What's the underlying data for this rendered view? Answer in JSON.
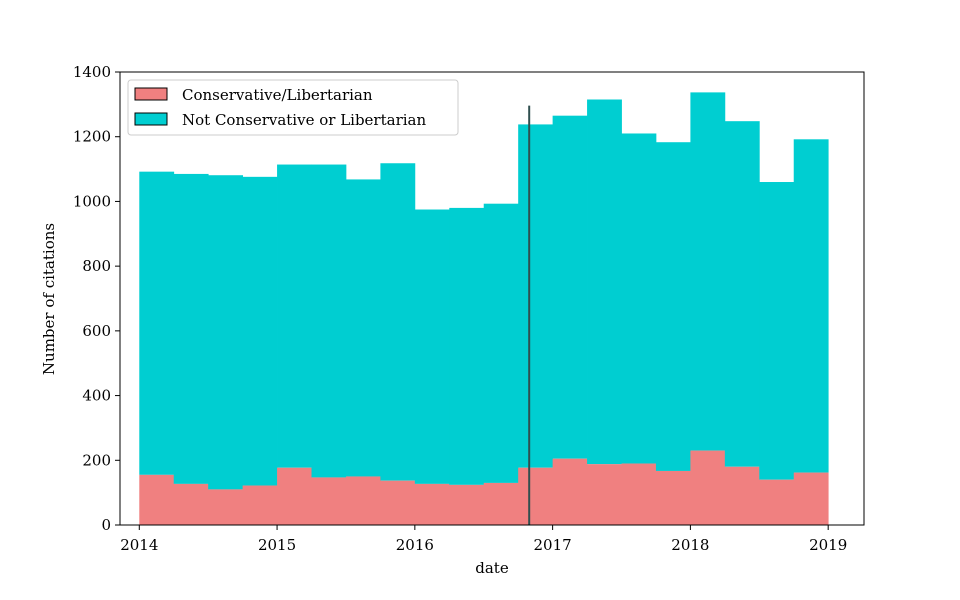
{
  "chart_data": {
    "type": "bar",
    "stacked": true,
    "title": "",
    "xlabel": "date",
    "ylabel": "Number of citations",
    "xlim": [
      2013.86,
      2019.26
    ],
    "ylim": [
      0,
      1400
    ],
    "grid": false,
    "legend_position": "top-left",
    "xticks": [
      2014,
      2015,
      2016,
      2017,
      2018,
      2019
    ],
    "yticks": [
      0,
      200,
      400,
      600,
      800,
      1000,
      1200,
      1400
    ],
    "bin_edges": [
      2014.0,
      2014.25,
      2014.5,
      2014.75,
      2015.0,
      2015.25,
      2015.5,
      2015.75,
      2016.0,
      2016.25,
      2016.5,
      2016.75,
      2017.0,
      2017.25,
      2017.5,
      2017.75,
      2018.0,
      2018.25,
      2018.5,
      2018.75,
      2019.0
    ],
    "series": [
      {
        "name": "Conservative/Libertarian",
        "color": "#f08080",
        "values": [
          155,
          127,
          110,
          122,
          177,
          147,
          150,
          137,
          127,
          124,
          130,
          177,
          205,
          188,
          190,
          167,
          230,
          180,
          140,
          162
        ]
      },
      {
        "name": "Not Conservative or Libertarian",
        "color": "#00ced1",
        "totals": [
          1092,
          1085,
          1081,
          1076,
          1114,
          1114,
          1068,
          1118,
          975,
          980,
          993,
          1238,
          1265,
          1315,
          1210,
          1183,
          1337,
          1248,
          1060,
          1192
        ]
      }
    ],
    "vline": {
      "x": 2016.83,
      "y_top": 1296,
      "color": "#2f4f4f"
    }
  }
}
